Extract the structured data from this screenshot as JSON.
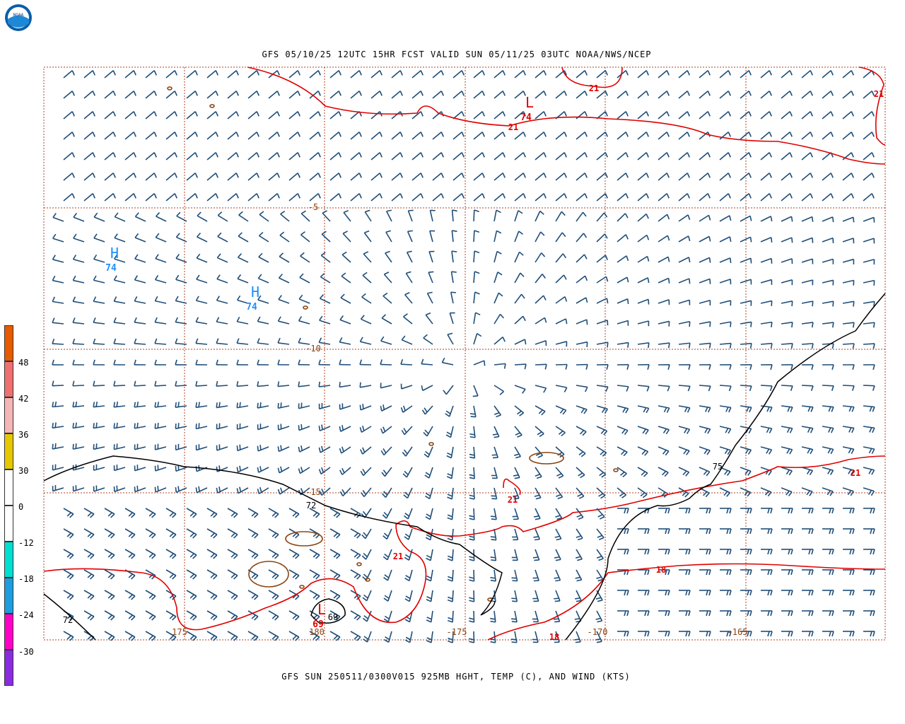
{
  "title": "GFS 05/10/25 12UTC 15HR FCST VALID SUN 05/11/25 03UTC NOAA/NWS/NCEP",
  "footer": "GFS SUN 250511/0300V015 925MB HGHT, TEMP (C), AND WIND (KTS)",
  "logo": {
    "text": "NOAA"
  },
  "colors": {
    "barb": "#1f4e79",
    "temp_contour": "#e00000",
    "height_contour": "#000000",
    "grid": "#b04020",
    "land": "#8b4513",
    "high": "#1e90ff",
    "low": "#e00000"
  },
  "lat_labels": [
    "-5",
    "-10",
    "-15"
  ],
  "lon_labels": [
    "175",
    "180",
    "-175",
    "-170",
    "-165"
  ],
  "temp_labels": [
    "21",
    "21",
    "21",
    "21",
    "21",
    "18",
    "18",
    "21"
  ],
  "height_labels": [
    "72",
    "72",
    "75",
    "69"
  ],
  "centers": [
    {
      "type": "L",
      "value": "74"
    },
    {
      "type": "H",
      "value": "74"
    },
    {
      "type": "H",
      "value": "74"
    },
    {
      "type": "L",
      "value": "69"
    }
  ],
  "colorbar": {
    "labels": [
      "48",
      "42",
      "36",
      "30",
      "0",
      "-12",
      "-18",
      "-24",
      "-30"
    ],
    "colors": [
      "#e85a00",
      "#f07070",
      "#f6b6b6",
      "#e6c800",
      "#ffffff",
      "#00e0d0",
      "#1c9ee0",
      "#ff00c8",
      "#8a2be2"
    ]
  }
}
